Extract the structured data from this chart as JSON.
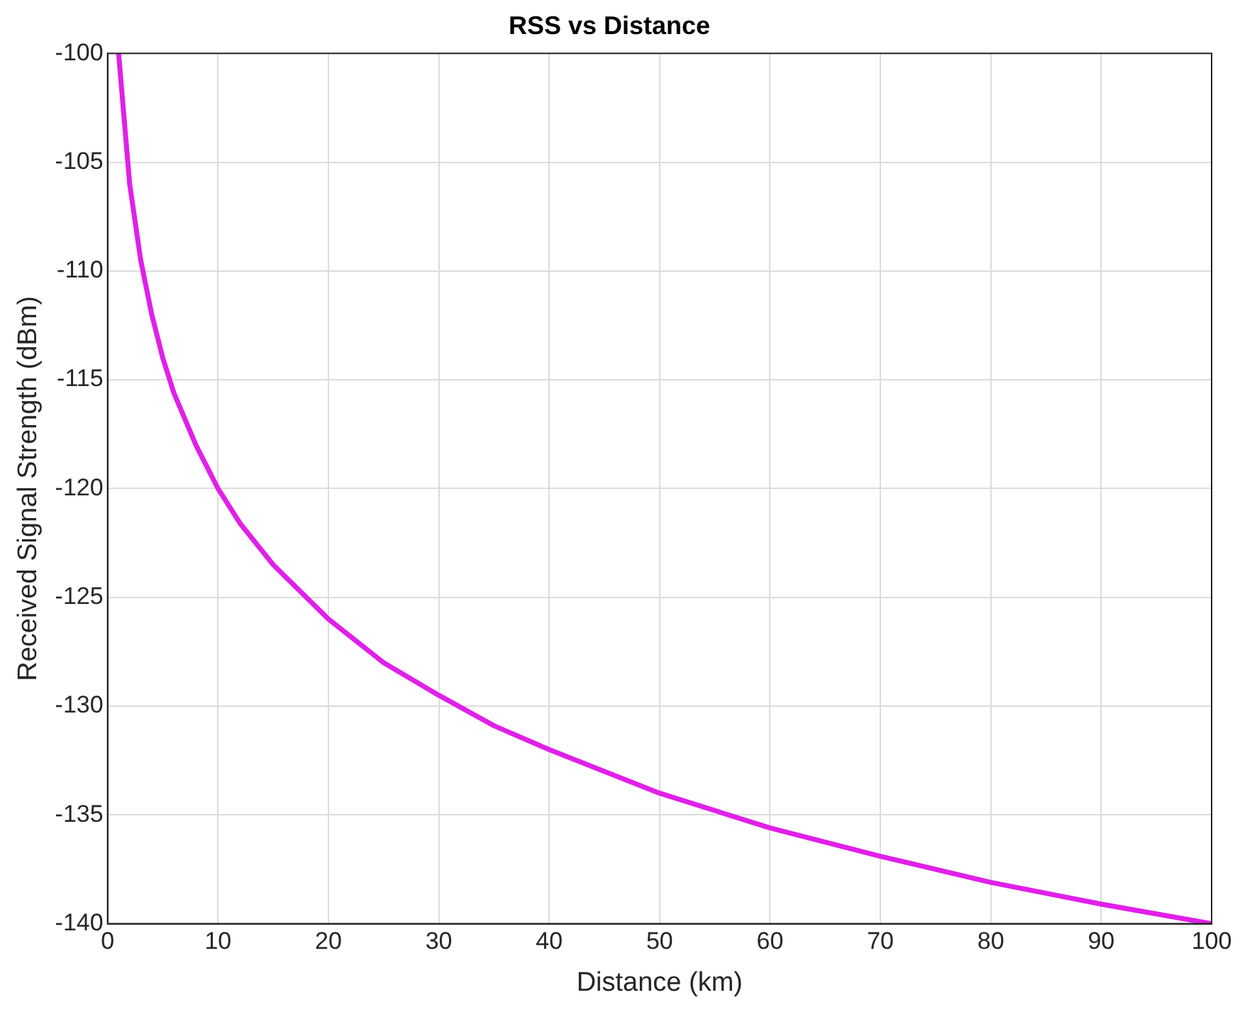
{
  "chart_data": {
    "type": "line",
    "title": "RSS vs Distance",
    "xlabel": "Distance (km)",
    "ylabel": "Received Signal Strength (dBm)",
    "x": [
      1,
      2,
      3,
      4,
      5,
      6,
      8,
      10,
      12,
      15,
      20,
      25,
      30,
      35,
      40,
      50,
      60,
      70,
      80,
      90,
      100
    ],
    "series": [
      {
        "color": "#e020e8",
        "values": [
          -100,
          -106,
          -109.5,
          -112,
          -114,
          -115.6,
          -118,
          -120,
          -121.6,
          -123.5,
          -126,
          -128,
          -129.5,
          -130.9,
          -132,
          -134,
          -135.6,
          -136.9,
          -138.1,
          -139.1,
          -140
        ]
      }
    ],
    "xlim": [
      0,
      100
    ],
    "xticks": [
      0,
      10,
      20,
      30,
      40,
      50,
      60,
      70,
      80,
      90,
      100
    ],
    "ylim": [
      -140,
      -100
    ],
    "yticks": [
      -140,
      -135,
      -130,
      -125,
      -120,
      -115,
      -110,
      -105,
      -100
    ],
    "grid": true,
    "legend": false,
    "marker": "none",
    "line_style": "solid"
  }
}
